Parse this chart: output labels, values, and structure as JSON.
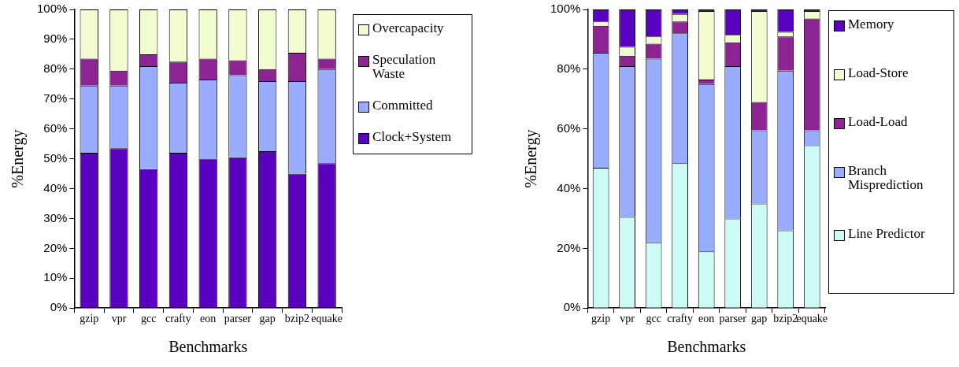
{
  "chart_data": [
    {
      "type": "bar",
      "stacked": true,
      "xlabel": "Benchmarks",
      "ylabel": "%Energy",
      "categories": [
        "gzip",
        "vpr",
        "gcc",
        "crafty",
        "eon",
        "parser",
        "gap",
        "bzip2",
        "equake"
      ],
      "series": [
        {
          "name": "Clock+System",
          "color": "#5a00c0",
          "values": [
            52,
            53.5,
            46.5,
            52,
            50,
            50.5,
            52.5,
            45,
            48.5
          ]
        },
        {
          "name": "Committed",
          "color": "#9aacff",
          "values": [
            22.5,
            21,
            34.5,
            23.5,
            26.5,
            27.5,
            23.5,
            31,
            31.5
          ]
        },
        {
          "name": "Speculation Waste",
          "color": "#8e2394",
          "values": [
            9,
            5,
            4,
            7,
            7,
            5,
            4,
            9.5,
            3.5
          ]
        },
        {
          "name": "Overcapacity",
          "color": "#f2facf",
          "values": [
            16.5,
            20.5,
            15,
            17.5,
            16.5,
            17,
            20,
            14.5,
            16.5
          ]
        }
      ],
      "ylim": [
        0,
        100
      ],
      "yticks": [
        {
          "value": 0,
          "label": "0%"
        },
        {
          "value": 10,
          "label": "10%"
        },
        {
          "value": 20,
          "label": "20%"
        },
        {
          "value": 30,
          "label": "30%"
        },
        {
          "value": 40,
          "label": "40%"
        },
        {
          "value": 50,
          "label": "50%"
        },
        {
          "value": 60,
          "label": "60%"
        },
        {
          "value": 70,
          "label": "70%"
        },
        {
          "value": 80,
          "label": "80%"
        },
        {
          "value": 90,
          "label": "90%"
        },
        {
          "value": 100,
          "label": "100%"
        }
      ],
      "grid": false,
      "legend": "right"
    },
    {
      "type": "bar",
      "stacked": true,
      "xlabel": "Benchmarks",
      "ylabel": "%Energy",
      "categories": [
        "gzip",
        "vpr",
        "gcc",
        "crafty",
        "eon",
        "parser",
        "gap",
        "bzip2",
        "equake"
      ],
      "series": [
        {
          "name": "Line Predictor",
          "color": "#ccfaf4",
          "values": [
            47,
            30.5,
            22,
            48.5,
            19,
            30,
            35,
            26,
            54.5
          ]
        },
        {
          "name": "Branch Misprediction",
          "color": "#9aacff",
          "values": [
            38.5,
            50.5,
            61.5,
            43.5,
            56,
            51,
            24.5,
            53.5,
            5
          ]
        },
        {
          "name": "Load-Load",
          "color": "#8e2394",
          "values": [
            9,
            3.5,
            5,
            4,
            1.5,
            8,
            9.5,
            11.5,
            37.5
          ]
        },
        {
          "name": "Load-Store",
          "color": "#f2facf",
          "values": [
            1.5,
            3,
            2.5,
            2.5,
            23,
            2.5,
            30.5,
            1.5,
            2.5
          ]
        },
        {
          "name": "Memory",
          "color": "#5a00c0",
          "values": [
            4,
            12.5,
            9,
            1.5,
            0.5,
            8.5,
            0.5,
            7.5,
            0.5
          ]
        }
      ],
      "ylim": [
        0,
        100
      ],
      "yticks": [
        {
          "value": 0,
          "label": "0%"
        },
        {
          "value": 20,
          "label": "20%"
        },
        {
          "value": 40,
          "label": "40%"
        },
        {
          "value": 60,
          "label": "60%"
        },
        {
          "value": 80,
          "label": "80%"
        },
        {
          "value": 100,
          "label": "100%"
        }
      ],
      "grid": false,
      "legend": "right"
    }
  ]
}
